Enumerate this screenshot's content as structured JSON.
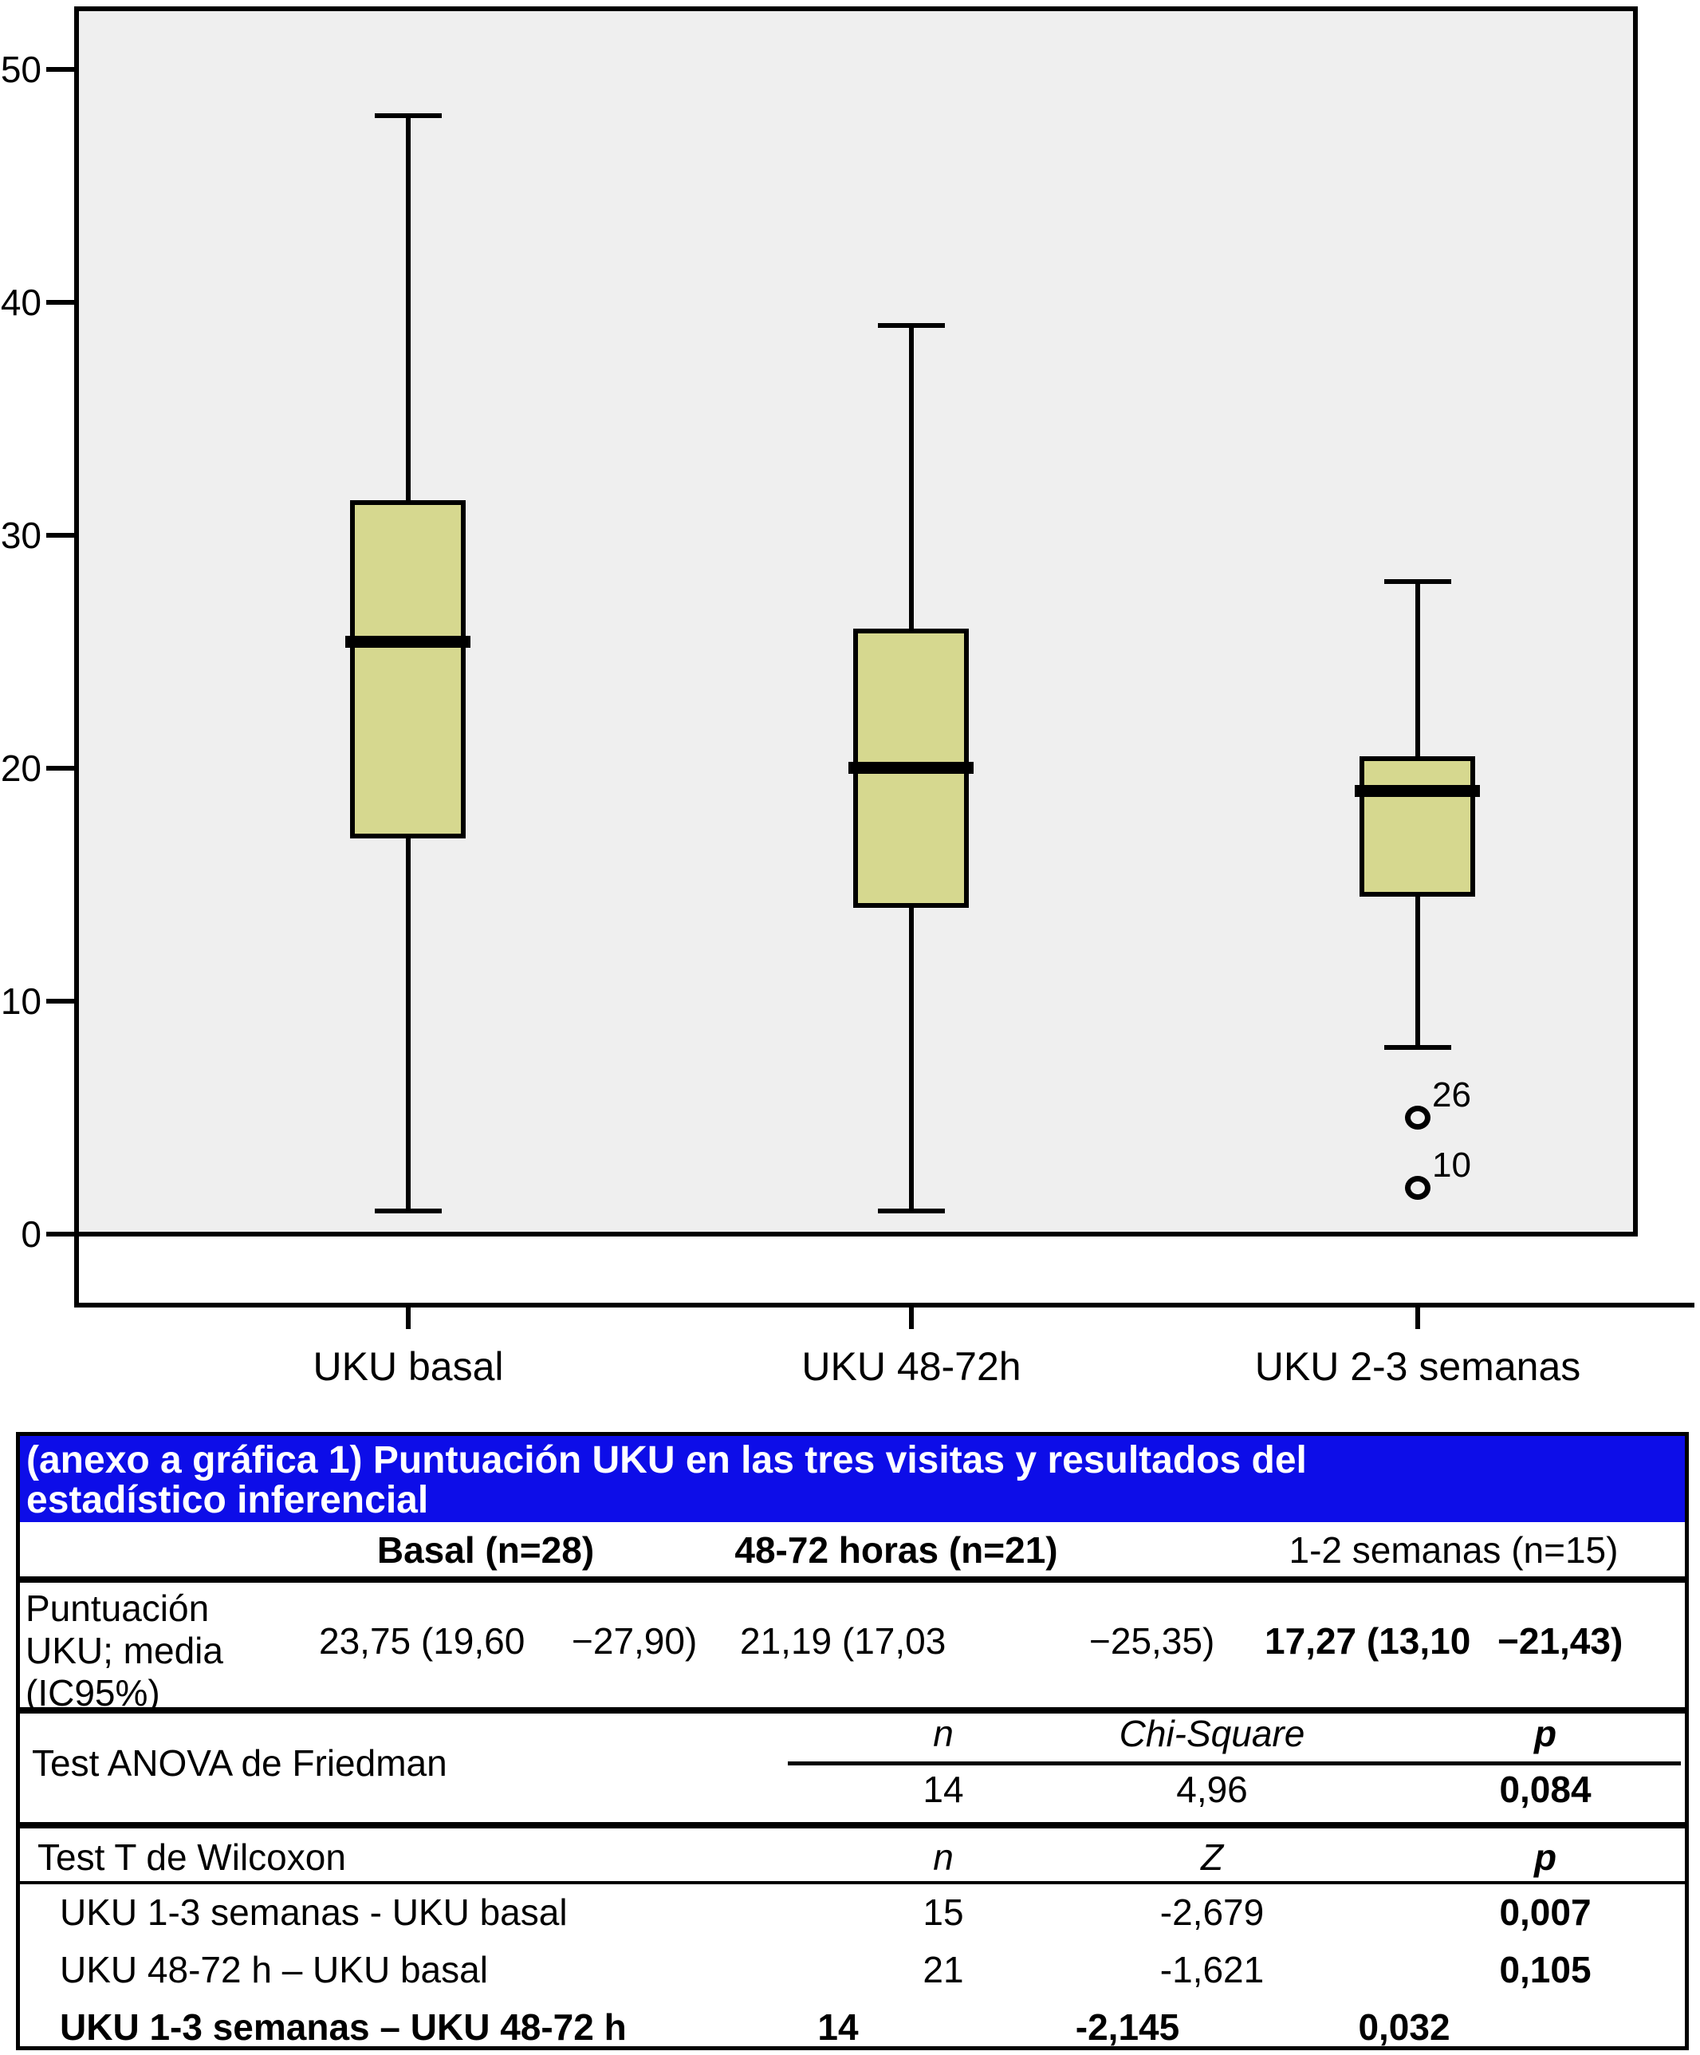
{
  "chart_data": {
    "type": "boxplot",
    "title": "",
    "xlabel": "",
    "ylabel": "",
    "ylim": [
      0,
      50
    ],
    "yticks": [
      0,
      10,
      20,
      30,
      40,
      50
    ],
    "grid": false,
    "legend": false,
    "categories": [
      "UKU basal",
      "UKU 48-72h",
      "UKU 2-3 semanas"
    ],
    "series": [
      {
        "category": "UKU basal",
        "whisker_low": 1,
        "q1": 17,
        "median": 25.4,
        "q3": 31.5,
        "whisker_high": 48,
        "outliers": []
      },
      {
        "category": "UKU 48-72h",
        "whisker_low": 1,
        "q1": 14,
        "median": 20,
        "q3": 26,
        "whisker_high": 39,
        "outliers": []
      },
      {
        "category": "UKU 2-3 semanas",
        "whisker_low": 8,
        "q1": 14.5,
        "median": 19,
        "q3": 20.5,
        "whisker_high": 28,
        "outliers": [
          {
            "value": 5,
            "label": "26"
          },
          {
            "value": 2,
            "label": "10"
          }
        ]
      }
    ],
    "colors": {
      "box_fill": "#d6d88f",
      "plot_bg": "#efefef",
      "line": "#000000"
    }
  },
  "table": {
    "colors": {
      "header_bg": "#0d0de8",
      "header_text": "#ffffff"
    },
    "title_line1": "(anexo a gráfica 1) Puntuación UKU en las tres visitas y resultados del",
    "title_line2": "estadístico inferencial",
    "col_headers": [
      "Basal (n=28)",
      "48-72 horas (n=21)",
      "1-2 semanas (n=15)"
    ],
    "score_row": {
      "label": "Puntuación\nUKU; media\n(IC95%)",
      "basal_a": "23,75 (19,60",
      "basal_b": "−27,90)",
      "h4872_a": "21,19 (17,03",
      "h4872_b": "−25,35)",
      "sem_a": "17,27 (13,10",
      "sem_b": "−21,43)"
    },
    "friedman": {
      "label": "Test ANOVA de Friedman",
      "col_n": "n",
      "col_stat": "Chi-Square",
      "col_p": "p",
      "n": "14",
      "stat": "4,96",
      "p": "0,084"
    },
    "wilcoxon": {
      "label": "Test T de Wilcoxon",
      "col_n": "n",
      "col_stat": "Z",
      "col_p": "p",
      "rows": [
        {
          "label": "UKU 1-3 semanas - UKU basal",
          "n": "15",
          "z": "-2,679",
          "p": "0,007"
        },
        {
          "label": "UKU 48-72 h – UKU basal",
          "n": "21",
          "z": "-1,621",
          "p": "0,105"
        },
        {
          "label": "UKU 1-3 semanas – UKU 48-72 h",
          "n": "14",
          "z": "-2,145",
          "p": "0,032"
        }
      ]
    }
  }
}
